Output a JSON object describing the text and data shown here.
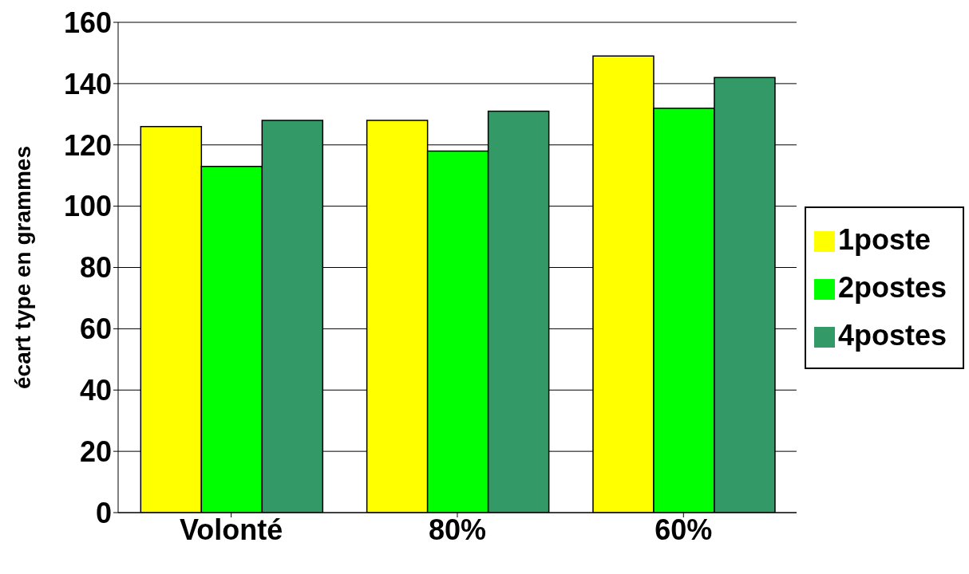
{
  "chart_data": {
    "type": "bar",
    "ylabel": "écart type en grammes",
    "categories": [
      "Volonté",
      "80%",
      "60%"
    ],
    "series": [
      {
        "name": "1poste",
        "color": "#ffff00",
        "values": [
          126,
          128,
          149
        ]
      },
      {
        "name": "2postes",
        "color": "#00ff00",
        "values": [
          113,
          118,
          132
        ]
      },
      {
        "name": "4postes",
        "color": "#339966",
        "values": [
          128,
          131,
          142
        ]
      }
    ],
    "ylim": [
      0,
      160
    ],
    "yticks": [
      0,
      20,
      40,
      60,
      80,
      100,
      120,
      140,
      160
    ],
    "grid": "y",
    "legend": "right"
  }
}
